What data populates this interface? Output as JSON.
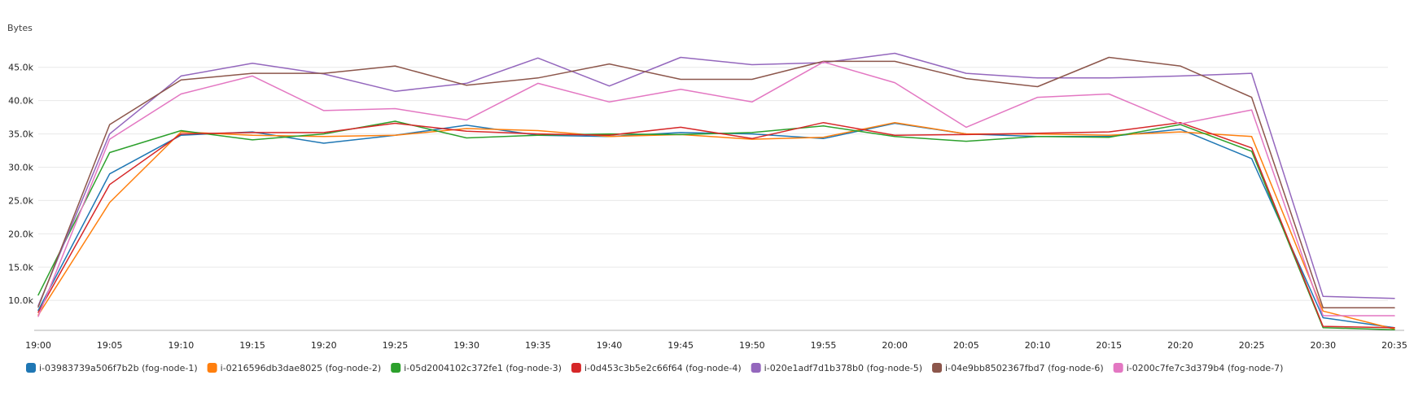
{
  "chart_data": {
    "type": "line",
    "ylabel": "Bytes",
    "ylim": [
      5500,
      49000
    ],
    "yticks": [
      "10.0k",
      "15.0k",
      "20.0k",
      "25.0k",
      "30.0k",
      "35.0k",
      "40.0k",
      "45.0k"
    ],
    "ytick_values": [
      10000,
      15000,
      20000,
      25000,
      30000,
      35000,
      40000,
      45000
    ],
    "x": [
      "19:00",
      "19:05",
      "19:10",
      "19:15",
      "19:20",
      "19:25",
      "19:30",
      "19:35",
      "19:40",
      "19:45",
      "19:50",
      "19:55",
      "20:00",
      "20:05",
      "20:10",
      "20:15",
      "20:20",
      "20:25",
      "20:30",
      "20:35"
    ],
    "grid": true,
    "legend_position": "bottom",
    "series": [
      {
        "name": "i-03983739a506f7b2b (fog-node-1)",
        "color": "#1f77b4",
        "values": [
          8500,
          29000,
          34800,
          35300,
          33600,
          34800,
          36300,
          34800,
          34600,
          35200,
          35000,
          34300,
          36600,
          35000,
          34600,
          34600,
          35700,
          31300,
          7400,
          5900
        ]
      },
      {
        "name": "i-0216596db3dae8025 (fog-node-2)",
        "color": "#ff7f0e",
        "values": [
          7800,
          24700,
          35300,
          34800,
          34600,
          34800,
          35800,
          35500,
          34600,
          34900,
          34200,
          34500,
          36700,
          35000,
          35000,
          34800,
          35300,
          34600,
          8400,
          5700
        ]
      },
      {
        "name": "i-05d2004102c372fe1 (fog-node-3)",
        "color": "#2ca02c",
        "values": [
          10800,
          32200,
          35500,
          34100,
          35000,
          36900,
          34400,
          34800,
          35000,
          34900,
          35200,
          36200,
          34600,
          33900,
          34600,
          34500,
          36400,
          32400,
          5900,
          5600
        ]
      },
      {
        "name": "i-0d453c3b5e2c66f64 (fog-node-4)",
        "color": "#d62728",
        "values": [
          8200,
          27400,
          35000,
          35200,
          35200,
          36600,
          35400,
          35000,
          34800,
          36000,
          34300,
          36700,
          34800,
          34900,
          35100,
          35300,
          36700,
          32900,
          6100,
          5900
        ]
      },
      {
        "name": "i-020e1adf7d1b378b0 (fog-node-5)",
        "color": "#9467bd",
        "values": [
          9200,
          35000,
          43700,
          45600,
          44000,
          41400,
          42600,
          46400,
          42200,
          46500,
          45400,
          45700,
          47100,
          44100,
          43400,
          43400,
          43700,
          44100,
          10600,
          10300
        ]
      },
      {
        "name": "i-04e9bb8502367fbd7 (fog-node-6)",
        "color": "#8c564b",
        "values": [
          9000,
          36400,
          43100,
          44100,
          44100,
          45200,
          42300,
          43400,
          45500,
          43200,
          43200,
          45900,
          45900,
          43300,
          42100,
          46500,
          45200,
          40500,
          8900,
          8900
        ]
      },
      {
        "name": "i-0200c7fe7c3d379b4 (fog-node-7)",
        "color": "#e377c2",
        "values": [
          7600,
          34200,
          41000,
          43700,
          38500,
          38800,
          37100,
          42600,
          39800,
          41700,
          39800,
          45800,
          42700,
          36000,
          40500,
          41000,
          36500,
          38600,
          7700,
          7700
        ]
      }
    ]
  }
}
